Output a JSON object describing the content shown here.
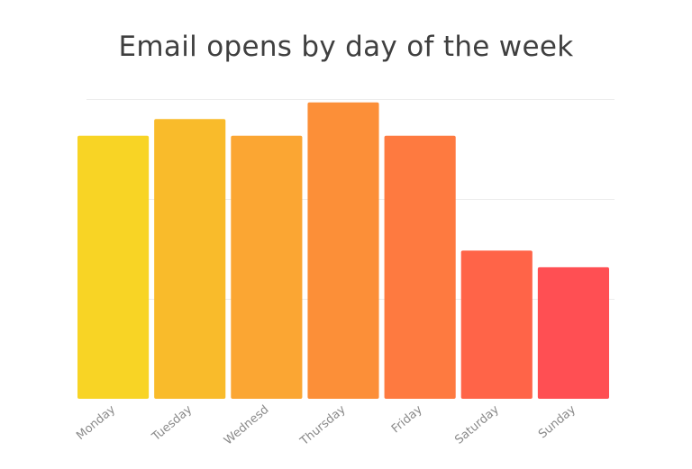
{
  "chart_data": {
    "type": "bar",
    "title": "Email opens by day of the week",
    "xlabel": "",
    "ylabel": "",
    "categories": [
      "Monday",
      "Tuesday",
      "Wednesday",
      "Thursday",
      "Friday",
      "Saturday",
      "Sunday"
    ],
    "tick_labels_shown": [
      "Monday",
      "Tuesday",
      "Wednesd",
      "Thursday",
      "Friday",
      "Saturday",
      "Sunday"
    ],
    "values": [
      79,
      84,
      79,
      89,
      79,
      44.5,
      39.5
    ],
    "ylim": [
      0,
      90
    ],
    "grid": true,
    "legend": "none",
    "colors": [
      "#f8d425",
      "#f9bb2b",
      "#fba633",
      "#fc8f38",
      "#fe7a40",
      "#ff6448",
      "#ff4f53"
    ]
  }
}
